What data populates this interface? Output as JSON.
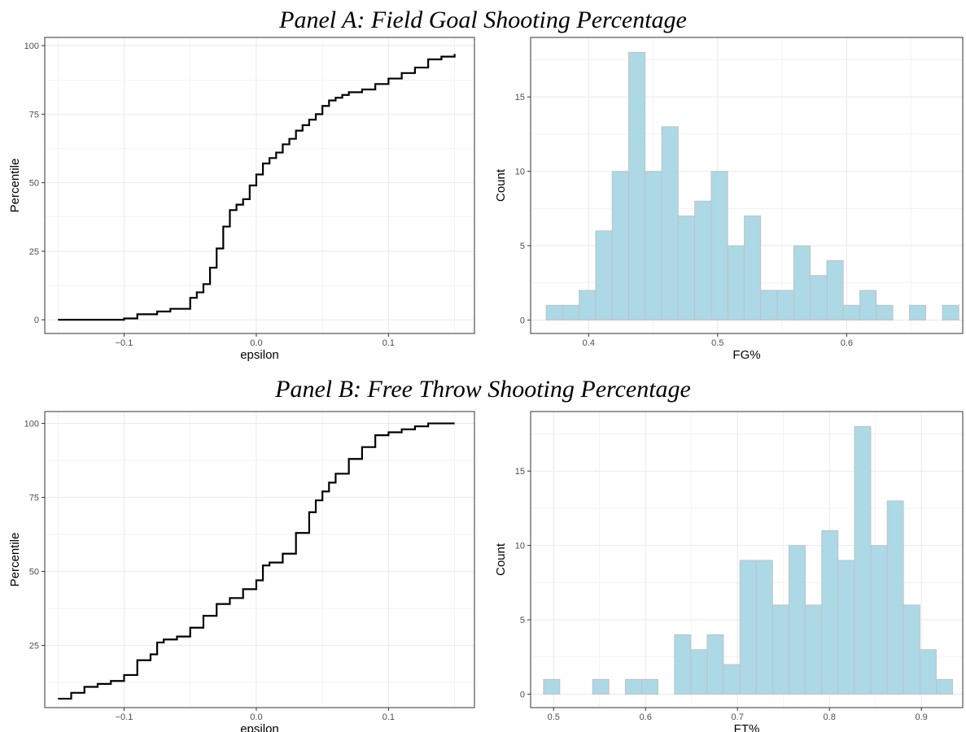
{
  "panel_a_title": "Panel A: Field Goal Shooting Percentage",
  "panel_b_title": "Panel B: Free Throw Shooting Percentage",
  "colors": {
    "bar_fill": "#add8e6",
    "bar_stroke": "#bebebe",
    "line": "#000000",
    "grid": "#ebebeb"
  },
  "chart_data": [
    {
      "id": "a_cdf",
      "type": "line",
      "xlabel": "epsilon",
      "ylabel": "Percentile",
      "xlim": [
        -0.16,
        0.165
      ],
      "ylim": [
        -5,
        103
      ],
      "x_ticks": [
        -0.1,
        0.0,
        0.1
      ],
      "x_tick_labels": [
        "−0.1",
        "0.0",
        "0.1"
      ],
      "y_ticks": [
        0,
        25,
        50,
        75,
        100
      ],
      "x": [
        -0.15,
        -0.1,
        -0.09,
        -0.075,
        -0.065,
        -0.05,
        -0.045,
        -0.04,
        -0.035,
        -0.03,
        -0.025,
        -0.02,
        -0.015,
        -0.01,
        -0.005,
        0.0,
        0.005,
        0.01,
        0.015,
        0.02,
        0.025,
        0.03,
        0.035,
        0.04,
        0.045,
        0.05,
        0.055,
        0.06,
        0.065,
        0.07,
        0.08,
        0.09,
        0.1,
        0.11,
        0.12,
        0.13,
        0.14,
        0.15
      ],
      "y": [
        0,
        0.5,
        2,
        3,
        4,
        8,
        10,
        13,
        19,
        26,
        34,
        40,
        42,
        44,
        49,
        53,
        57,
        59,
        61,
        64,
        66,
        69,
        71,
        73,
        75,
        78,
        80,
        81,
        82,
        83,
        84,
        86,
        88,
        90,
        92,
        95,
        96,
        97
      ]
    },
    {
      "id": "a_hist",
      "type": "bar",
      "xlabel": "FG%",
      "ylabel": "Count",
      "xlim": [
        0.355,
        0.69
      ],
      "ylim": [
        -0.9,
        19
      ],
      "x_ticks": [
        0.4,
        0.5,
        0.6
      ],
      "x_tick_labels": [
        "0.4",
        "0.5",
        "0.6"
      ],
      "y_ticks": [
        0,
        5,
        10,
        15
      ],
      "bin_start": 0.367,
      "bin_width": 0.0128,
      "values": [
        1,
        1,
        2,
        6,
        10,
        18,
        10,
        13,
        7,
        8,
        10,
        5,
        7,
        2,
        2,
        5,
        3,
        4,
        1,
        2,
        1,
        0,
        1,
        0,
        1
      ]
    },
    {
      "id": "b_cdf",
      "type": "line",
      "xlabel": "epsilon",
      "ylabel": "Percentile",
      "xlim": [
        -0.16,
        0.165
      ],
      "ylim": [
        4,
        104
      ],
      "x_ticks": [
        -0.1,
        0.0,
        0.1
      ],
      "x_tick_labels": [
        "−0.1",
        "0.0",
        "0.1"
      ],
      "y_ticks": [
        25,
        50,
        75,
        100
      ],
      "x": [
        -0.15,
        -0.14,
        -0.13,
        -0.12,
        -0.11,
        -0.1,
        -0.09,
        -0.08,
        -0.075,
        -0.07,
        -0.06,
        -0.05,
        -0.04,
        -0.03,
        -0.02,
        -0.01,
        0.0,
        0.005,
        0.01,
        0.02,
        0.03,
        0.04,
        0.045,
        0.05,
        0.055,
        0.06,
        0.07,
        0.08,
        0.09,
        0.1,
        0.11,
        0.12,
        0.13,
        0.15
      ],
      "y": [
        7,
        9,
        11,
        12,
        13,
        15,
        20,
        22,
        26,
        27,
        28,
        31,
        35,
        39,
        41,
        44,
        47,
        52,
        53,
        56,
        63,
        70,
        74,
        77,
        80,
        83,
        88,
        92,
        96,
        97,
        98,
        99,
        100,
        100
      ]
    },
    {
      "id": "b_hist",
      "type": "bar",
      "xlabel": "FT%",
      "ylabel": "Count",
      "xlim": [
        0.475,
        0.945
      ],
      "ylim": [
        -0.9,
        19
      ],
      "x_ticks": [
        0.5,
        0.6,
        0.7,
        0.8,
        0.9
      ],
      "x_tick_labels": [
        "0.5",
        "0.6",
        "0.7",
        "0.8",
        "0.9"
      ],
      "y_ticks": [
        0,
        5,
        10,
        15
      ],
      "bin_start": 0.489,
      "bin_width": 0.0178,
      "values": [
        1,
        0,
        0,
        1,
        0,
        1,
        1,
        0,
        4,
        3,
        4,
        2,
        9,
        9,
        6,
        10,
        6,
        11,
        9,
        18,
        10,
        13,
        6,
        3,
        1
      ]
    }
  ]
}
